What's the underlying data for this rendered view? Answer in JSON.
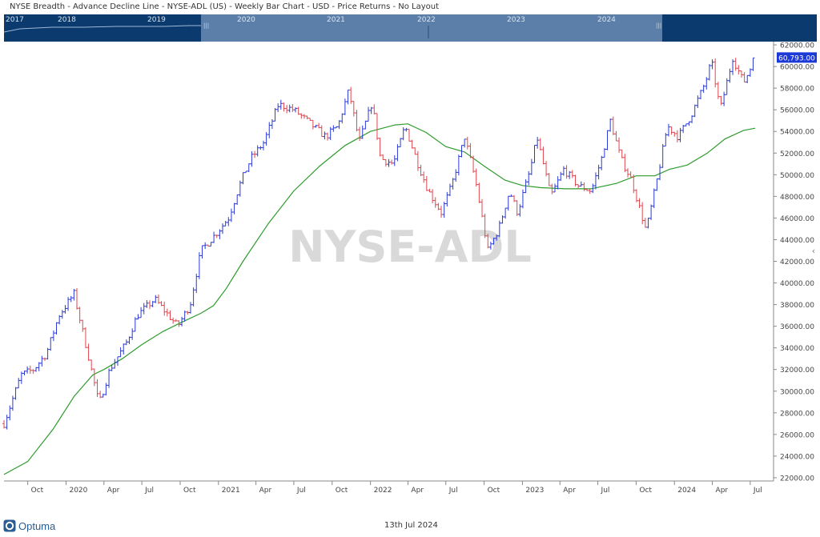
{
  "header": {
    "title": "NYSE Breadth - Advance Decline Line - NYSE-ADL (US) - Weekly Bar Chart - USD - Price Returns - No Layout"
  },
  "navigator": {
    "years": [
      "2017",
      "2018",
      "2019",
      "2020",
      "2021",
      "2022",
      "2023",
      "2024"
    ]
  },
  "footer": {
    "logo_text": "Optuma",
    "date": "13th Jul 2024"
  },
  "colors": {
    "up_bar": "#2b3ad6",
    "down_bar": "#e0474f",
    "moving_average": "#2e9c2e",
    "last_price_tag": "#1d3ad9",
    "navigator_bg": "#0a3a6e",
    "navigator_window": "#5b7fa8"
  },
  "chart_data": {
    "type": "bar",
    "watermark": "NYSE-ADL",
    "y_ticks": [
      22000,
      24000,
      26000,
      28000,
      30000,
      32000,
      34000,
      36000,
      38000,
      40000,
      42000,
      44000,
      46000,
      48000,
      50000,
      52000,
      54000,
      56000,
      58000,
      60000,
      62000
    ],
    "y_tick_labels": [
      "22000.00",
      "24000.00",
      "26000.00",
      "28000.00",
      "30000.00",
      "32000.00",
      "34000.00",
      "36000.00",
      "38000.00",
      "40000.00",
      "42000.00",
      "44000.00",
      "46000.00",
      "48000.00",
      "50000.00",
      "52000.00",
      "54000.00",
      "56000.00",
      "58000.00",
      "60000.00",
      "62000.00"
    ],
    "ylim": [
      21700,
      62300
    ],
    "xlim": [
      "2019-08-05",
      "2024-08-26"
    ],
    "x_ticks": [
      {
        "label": "Oct",
        "date": "2019-10-01"
      },
      {
        "label": "2020",
        "date": "2020-01-01"
      },
      {
        "label": "Apr",
        "date": "2020-04-01"
      },
      {
        "label": "Jul",
        "date": "2020-07-01"
      },
      {
        "label": "Oct",
        "date": "2020-10-01"
      },
      {
        "label": "2021",
        "date": "2021-01-01"
      },
      {
        "label": "Apr",
        "date": "2021-04-01"
      },
      {
        "label": "Jul",
        "date": "2021-07-01"
      },
      {
        "label": "Oct",
        "date": "2021-10-01"
      },
      {
        "label": "2022",
        "date": "2022-01-01"
      },
      {
        "label": "Apr",
        "date": "2022-04-01"
      },
      {
        "label": "Jul",
        "date": "2022-07-01"
      },
      {
        "label": "Oct",
        "date": "2022-10-01"
      },
      {
        "label": "2023",
        "date": "2023-01-01"
      },
      {
        "label": "Apr",
        "date": "2023-04-01"
      },
      {
        "label": "Jul",
        "date": "2023-07-01"
      },
      {
        "label": "Oct",
        "date": "2023-10-01"
      },
      {
        "label": "2024",
        "date": "2024-01-01"
      },
      {
        "label": "Apr",
        "date": "2024-04-01"
      },
      {
        "label": "Jul",
        "date": "2024-07-01"
      }
    ],
    "last_value": 60793.0,
    "last_value_label": "60,793.00",
    "close_anchors": [
      {
        "date": "2019-08-05",
        "value": 27000
      },
      {
        "date": "2019-09-15",
        "value": 31500
      },
      {
        "date": "2019-10-15",
        "value": 32000
      },
      {
        "date": "2019-11-15",
        "value": 33500
      },
      {
        "date": "2019-12-15",
        "value": 37000
      },
      {
        "date": "2020-01-20",
        "value": 39000
      },
      {
        "date": "2020-02-25",
        "value": 33000
      },
      {
        "date": "2020-03-20",
        "value": 28800
      },
      {
        "date": "2020-04-15",
        "value": 32000
      },
      {
        "date": "2020-05-25",
        "value": 34500
      },
      {
        "date": "2020-06-20",
        "value": 37000
      },
      {
        "date": "2020-08-01",
        "value": 38500
      },
      {
        "date": "2020-09-25",
        "value": 36000
      },
      {
        "date": "2020-10-25",
        "value": 38000
      },
      {
        "date": "2020-11-20",
        "value": 43000
      },
      {
        "date": "2020-12-25",
        "value": 44500
      },
      {
        "date": "2021-01-25",
        "value": 46000
      },
      {
        "date": "2021-02-25",
        "value": 49500
      },
      {
        "date": "2021-03-20",
        "value": 51500
      },
      {
        "date": "2021-04-20",
        "value": 53000
      },
      {
        "date": "2021-05-25",
        "value": 56500
      },
      {
        "date": "2021-07-01",
        "value": 56000
      },
      {
        "date": "2021-08-01",
        "value": 55000
      },
      {
        "date": "2021-09-15",
        "value": 53500
      },
      {
        "date": "2021-10-15",
        "value": 54500
      },
      {
        "date": "2021-11-10",
        "value": 57800
      },
      {
        "date": "2021-12-05",
        "value": 53000
      },
      {
        "date": "2022-01-05",
        "value": 56700
      },
      {
        "date": "2022-01-25",
        "value": 51500
      },
      {
        "date": "2022-02-25",
        "value": 51000
      },
      {
        "date": "2022-03-25",
        "value": 54500
      },
      {
        "date": "2022-04-25",
        "value": 51000
      },
      {
        "date": "2022-05-20",
        "value": 48500
      },
      {
        "date": "2022-06-20",
        "value": 46500
      },
      {
        "date": "2022-07-15",
        "value": 49000
      },
      {
        "date": "2022-08-15",
        "value": 53500
      },
      {
        "date": "2022-09-10",
        "value": 49500
      },
      {
        "date": "2022-10-10",
        "value": 43000
      },
      {
        "date": "2022-11-05",
        "value": 45000
      },
      {
        "date": "2022-12-01",
        "value": 48500
      },
      {
        "date": "2022-12-20",
        "value": 46500
      },
      {
        "date": "2023-01-20",
        "value": 50500
      },
      {
        "date": "2023-02-05",
        "value": 53500
      },
      {
        "date": "2023-03-10",
        "value": 48000
      },
      {
        "date": "2023-04-10",
        "value": 50500
      },
      {
        "date": "2023-05-15",
        "value": 49000
      },
      {
        "date": "2023-06-15",
        "value": 48500
      },
      {
        "date": "2023-07-10",
        "value": 51500
      },
      {
        "date": "2023-07-31",
        "value": 55000
      },
      {
        "date": "2023-08-25",
        "value": 51500
      },
      {
        "date": "2023-09-20",
        "value": 49500
      },
      {
        "date": "2023-10-25",
        "value": 44800
      },
      {
        "date": "2023-11-20",
        "value": 49500
      },
      {
        "date": "2023-12-15",
        "value": 54500
      },
      {
        "date": "2024-01-10",
        "value": 53500
      },
      {
        "date": "2024-02-10",
        "value": 55500
      },
      {
        "date": "2024-03-15",
        "value": 58500
      },
      {
        "date": "2024-03-30",
        "value": 60500
      },
      {
        "date": "2024-04-20",
        "value": 56000
      },
      {
        "date": "2024-05-20",
        "value": 60800
      },
      {
        "date": "2024-06-15",
        "value": 58500
      },
      {
        "date": "2024-07-13",
        "value": 60793
      }
    ],
    "moving_average_anchors": [
      {
        "date": "2019-08-05",
        "value": 22300
      },
      {
        "date": "2019-10-01",
        "value": 23500
      },
      {
        "date": "2019-12-01",
        "value": 26500
      },
      {
        "date": "2020-01-20",
        "value": 29500
      },
      {
        "date": "2020-03-05",
        "value": 31500
      },
      {
        "date": "2020-04-01",
        "value": 32000
      },
      {
        "date": "2020-05-15",
        "value": 33000
      },
      {
        "date": "2020-07-01",
        "value": 34300
      },
      {
        "date": "2020-08-20",
        "value": 35500
      },
      {
        "date": "2020-10-01",
        "value": 36300
      },
      {
        "date": "2020-11-20",
        "value": 37200
      },
      {
        "date": "2020-12-20",
        "value": 37900
      },
      {
        "date": "2021-01-20",
        "value": 39500
      },
      {
        "date": "2021-03-01",
        "value": 42000
      },
      {
        "date": "2021-05-01",
        "value": 45500
      },
      {
        "date": "2021-07-01",
        "value": 48500
      },
      {
        "date": "2021-09-01",
        "value": 50800
      },
      {
        "date": "2021-11-01",
        "value": 52700
      },
      {
        "date": "2022-01-01",
        "value": 54000
      },
      {
        "date": "2022-03-01",
        "value": 54600
      },
      {
        "date": "2022-04-01",
        "value": 54700
      },
      {
        "date": "2022-05-15",
        "value": 53900
      },
      {
        "date": "2022-07-01",
        "value": 52600
      },
      {
        "date": "2022-08-15",
        "value": 52100
      },
      {
        "date": "2022-10-01",
        "value": 50800
      },
      {
        "date": "2022-11-20",
        "value": 49500
      },
      {
        "date": "2023-01-01",
        "value": 49000
      },
      {
        "date": "2023-02-15",
        "value": 48800
      },
      {
        "date": "2023-04-15",
        "value": 48700
      },
      {
        "date": "2023-06-15",
        "value": 48700
      },
      {
        "date": "2023-08-15",
        "value": 49200
      },
      {
        "date": "2023-10-01",
        "value": 49900
      },
      {
        "date": "2023-11-15",
        "value": 49900
      },
      {
        "date": "2023-12-20",
        "value": 50500
      },
      {
        "date": "2024-02-01",
        "value": 50900
      },
      {
        "date": "2024-03-20",
        "value": 52000
      },
      {
        "date": "2024-05-01",
        "value": 53300
      },
      {
        "date": "2024-06-15",
        "value": 54100
      },
      {
        "date": "2024-07-13",
        "value": 54300
      }
    ]
  }
}
